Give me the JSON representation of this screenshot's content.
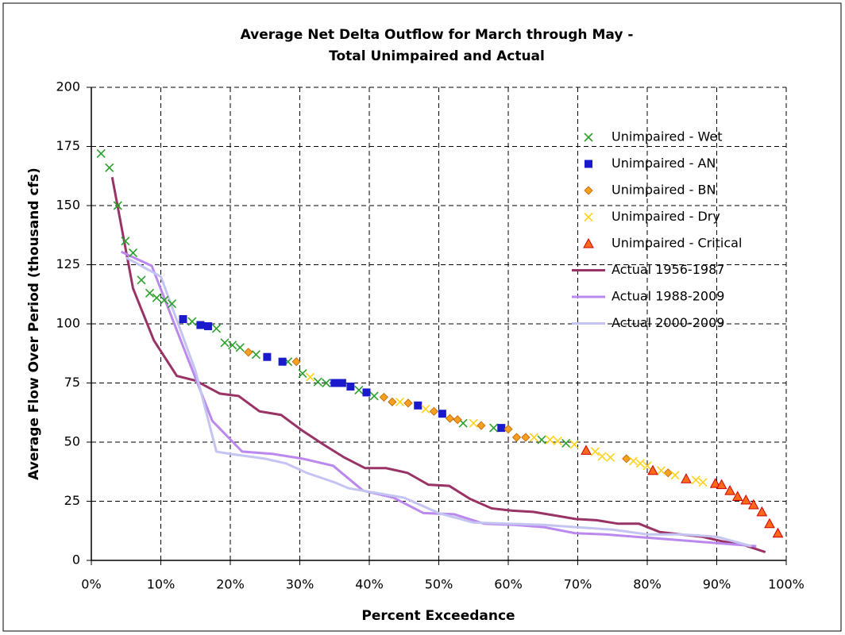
{
  "chart_data": {
    "type": "scatter",
    "title": [
      "Average Net Delta Outflow for March through May -",
      "Total Unimpaired and Actual"
    ],
    "x_label": "Percent Exceedance",
    "y_label": "Average Flow Over Period (thousand cfs)",
    "xlim": [
      0,
      100
    ],
    "ylim": [
      0,
      200
    ],
    "xticks": [
      {
        "value": 0,
        "label": "0%"
      },
      {
        "value": 10,
        "label": "10%"
      },
      {
        "value": 20,
        "label": "20%"
      },
      {
        "value": 30,
        "label": "30%"
      },
      {
        "value": 40,
        "label": "40%"
      },
      {
        "value": 50,
        "label": "50%"
      },
      {
        "value": 60,
        "label": "60%"
      },
      {
        "value": 70,
        "label": "70%"
      },
      {
        "value": 80,
        "label": "80%"
      },
      {
        "value": 90,
        "label": "90%"
      },
      {
        "value": 100,
        "label": "100%"
      }
    ],
    "yticks": [
      0,
      25,
      50,
      75,
      100,
      125,
      150,
      175,
      200
    ],
    "grid": true,
    "legend": "upper right",
    "series": [
      {
        "name": "Unimpaired - Wet",
        "type": "scatter",
        "marker": "x",
        "color": "#2ca02c",
        "x": [
          1.4,
          2.6,
          3.8,
          4.9,
          6.0,
          7.2,
          8.4,
          9.4,
          10.5,
          11.6,
          14.5,
          18.0,
          19.2,
          20.3,
          21.4,
          23.7,
          28.3,
          30.4,
          32.6,
          33.8,
          38.5,
          40.7,
          53.5,
          57.9,
          64.8,
          68.3
        ],
        "values": [
          172,
          166,
          150,
          135,
          130,
          118.5,
          113,
          111,
          110,
          108.5,
          101,
          98,
          92,
          91,
          90,
          87,
          84,
          79,
          75.5,
          75,
          72,
          69.5,
          58,
          56,
          51,
          49.5
        ]
      },
      {
        "name": "Unimpaired - AN",
        "type": "scatter",
        "marker": "square",
        "color": "#1a1acc",
        "x": [
          13.2,
          15.7,
          16.8,
          25.3,
          27.5,
          35.0,
          36.1,
          37.3,
          39.6,
          47.0,
          50.5,
          59.0
        ],
        "values": [
          102,
          99.5,
          99,
          86,
          84,
          75,
          75,
          73.5,
          71,
          65.5,
          62,
          56
        ]
      },
      {
        "name": "Unimpaired - BN",
        "type": "scatter",
        "marker": "diamond",
        "color": "#f5a020",
        "x": [
          22.6,
          29.5,
          42.1,
          43.3,
          45.6,
          49.3,
          51.6,
          52.7,
          56.1,
          60.0,
          61.2,
          62.5,
          77.0,
          83.0
        ],
        "values": [
          88,
          84,
          69,
          67,
          66.5,
          63,
          60,
          59.5,
          57,
          55.5,
          52,
          52,
          43,
          37
        ]
      },
      {
        "name": "Unimpaired - Dry",
        "type": "scatter",
        "marker": "x",
        "color": "#ffd21a",
        "x": [
          31.5,
          44.4,
          48.1,
          55.0,
          63.7,
          66.0,
          67.1,
          69.5,
          72.5,
          73.5,
          74.7,
          78.0,
          79.0,
          80.0,
          82.0,
          84.0,
          87.0,
          88.0
        ],
        "values": [
          77.5,
          67,
          64,
          58,
          52,
          51,
          50.5,
          49,
          46,
          44,
          43.5,
          42,
          41,
          40,
          38,
          36,
          34,
          33
        ]
      },
      {
        "name": "Unimpaired - Critical",
        "type": "scatter",
        "marker": "triangle",
        "color": "#ff6a1a",
        "x": [
          71.2,
          80.8,
          85.6,
          89.8,
          90.7,
          91.9,
          93.0,
          94.2,
          95.3,
          96.5,
          97.6,
          98.8
        ],
        "values": [
          46.5,
          38,
          34.5,
          32.5,
          32,
          29.5,
          27,
          25.5,
          23.5,
          20.5,
          15.5,
          11.5
        ]
      },
      {
        "name": "Actual 1956-1987",
        "type": "line",
        "color": "#993366",
        "x": [
          3.0,
          6.0,
          9.0,
          12.3,
          15.0,
          18.5,
          21.2,
          24.2,
          27.3,
          30.3,
          33.4,
          36.4,
          39.4,
          42.4,
          45.5,
          48.5,
          51.5,
          54.5,
          57.6,
          60.6,
          63.6,
          66.7,
          69.7,
          72.7,
          75.8,
          78.8,
          81.8,
          84.8,
          87.9,
          90.9,
          93.9,
          97.0
        ],
        "values": [
          162,
          115,
          93,
          78,
          76,
          70.5,
          69.5,
          63,
          61.5,
          55,
          49,
          43.5,
          39,
          39,
          37,
          32,
          31.5,
          26,
          22,
          21,
          20.5,
          19,
          17.5,
          17,
          15.5,
          15.5,
          12,
          11,
          10,
          8,
          6.5,
          3.5
        ]
      },
      {
        "name": "Actual 1988-2009",
        "type": "line",
        "color": "#bb88ee",
        "x": [
          4.3,
          8.7,
          13.0,
          17.4,
          21.7,
          26.1,
          30.4,
          34.8,
          39.1,
          43.5,
          47.8,
          52.2,
          56.5,
          60.9,
          65.2,
          69.6,
          73.9,
          78.3,
          82.6,
          87.0,
          91.3,
          95.7
        ],
        "values": [
          130.5,
          124.5,
          92,
          59,
          46,
          45,
          43,
          40,
          29.5,
          26.5,
          20,
          19.5,
          15.5,
          15,
          14,
          11.5,
          11,
          10,
          9,
          8,
          7,
          6
        ]
      },
      {
        "name": "Actual 2000-2009",
        "type": "line",
        "color": "#c4c4f2",
        "x": [
          5,
          10,
          15,
          18,
          20,
          25,
          28,
          31,
          35,
          37,
          40,
          45,
          50,
          55,
          60,
          65,
          70,
          75,
          80,
          85,
          90,
          95
        ],
        "values": [
          128,
          120,
          80,
          46,
          45,
          43,
          41,
          37,
          33,
          30.5,
          29,
          26.5,
          20,
          16,
          15.5,
          15,
          14,
          13,
          11,
          11,
          10,
          6
        ]
      }
    ]
  }
}
